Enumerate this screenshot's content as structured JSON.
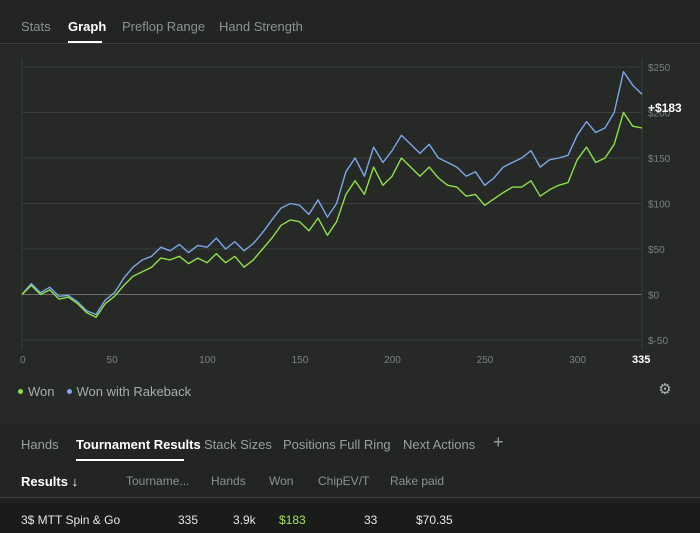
{
  "top_tabs": [
    {
      "label": "Stats",
      "active": false
    },
    {
      "label": "Graph",
      "active": true
    },
    {
      "label": "Preflop Range",
      "active": false
    },
    {
      "label": "Hand Strength",
      "active": false
    }
  ],
  "chart_data": {
    "type": "line",
    "ylim": [
      -50,
      250
    ],
    "xlim": [
      0,
      335
    ],
    "yticks": [
      "$250",
      "$200",
      "$150",
      "$100",
      "$50",
      "$0",
      "$-50"
    ],
    "ytick_values": [
      250,
      200,
      150,
      100,
      50,
      0,
      -50
    ],
    "xticks": [
      0,
      50,
      100,
      150,
      200,
      250,
      300
    ],
    "x_end_label": "335",
    "end_value_label": "+$183",
    "grid": true,
    "legend_position": "bottom-left",
    "series": [
      {
        "name": "Won",
        "color": "#8ee04a",
        "x": [
          0,
          5,
          10,
          15,
          20,
          25,
          30,
          35,
          40,
          45,
          50,
          55,
          60,
          65,
          70,
          75,
          80,
          85,
          90,
          95,
          100,
          105,
          110,
          115,
          120,
          125,
          130,
          135,
          140,
          145,
          150,
          155,
          160,
          165,
          170,
          175,
          180,
          185,
          190,
          195,
          200,
          205,
          210,
          215,
          220,
          225,
          230,
          235,
          240,
          245,
          250,
          255,
          260,
          265,
          270,
          275,
          280,
          285,
          290,
          295,
          300,
          305,
          310,
          315,
          320,
          325,
          330,
          335
        ],
        "values": [
          0,
          10,
          0,
          5,
          -5,
          -3,
          -10,
          -20,
          -25,
          -10,
          -2,
          10,
          20,
          25,
          30,
          40,
          38,
          42,
          34,
          40,
          35,
          45,
          35,
          42,
          30,
          38,
          50,
          62,
          76,
          82,
          80,
          70,
          84,
          65,
          80,
          110,
          125,
          110,
          140,
          120,
          130,
          150,
          140,
          130,
          140,
          128,
          120,
          118,
          108,
          110,
          98,
          105,
          112,
          118,
          118,
          125,
          108,
          115,
          120,
          123,
          148,
          162,
          145,
          150,
          165,
          200,
          185,
          183
        ]
      },
      {
        "name": "Won with Rakeback",
        "color": "#7ea6ea",
        "x": [
          0,
          5,
          10,
          15,
          20,
          25,
          30,
          35,
          40,
          45,
          50,
          55,
          60,
          65,
          70,
          75,
          80,
          85,
          90,
          95,
          100,
          105,
          110,
          115,
          120,
          125,
          130,
          135,
          140,
          145,
          150,
          155,
          160,
          165,
          170,
          175,
          180,
          185,
          190,
          195,
          200,
          205,
          210,
          215,
          220,
          225,
          230,
          235,
          240,
          245,
          250,
          255,
          260,
          265,
          270,
          275,
          280,
          285,
          290,
          295,
          300,
          305,
          310,
          315,
          320,
          325,
          330,
          335
        ],
        "values": [
          0,
          12,
          2,
          8,
          -2,
          -1,
          -8,
          -18,
          -22,
          -6,
          2,
          18,
          30,
          38,
          42,
          52,
          48,
          55,
          46,
          54,
          52,
          62,
          50,
          58,
          48,
          56,
          68,
          82,
          95,
          100,
          98,
          88,
          104,
          85,
          100,
          135,
          150,
          130,
          162,
          145,
          158,
          175,
          165,
          155,
          165,
          150,
          145,
          140,
          130,
          135,
          120,
          128,
          140,
          145,
          150,
          158,
          140,
          148,
          150,
          153,
          175,
          190,
          178,
          183,
          200,
          245,
          230,
          220
        ]
      }
    ]
  },
  "legend": [
    {
      "label": "Won",
      "color": "#8ee04a"
    },
    {
      "label": "Won with Rakeback",
      "color": "#7ea6ea"
    }
  ],
  "settings_icon": "gear-icon",
  "bottom_tabs": [
    {
      "label": "Hands",
      "active": false
    },
    {
      "label": "Tournament Results",
      "active": true
    },
    {
      "label": "Stack Sizes",
      "active": false
    },
    {
      "label": "Positions Full Ring",
      "active": false
    },
    {
      "label": "Next Actions",
      "active": false
    }
  ],
  "add_tab_label": "+",
  "table": {
    "columns": [
      "Results ↓",
      "Tourname...",
      "Hands",
      "Won",
      "ChipEV/T",
      "Rake paid"
    ],
    "rows": [
      {
        "results": "3$ MTT Spin & Go",
        "tournaments": "335",
        "hands": "3.9k",
        "won": "$183",
        "chipev": "33",
        "rake": "$70.35"
      }
    ]
  }
}
